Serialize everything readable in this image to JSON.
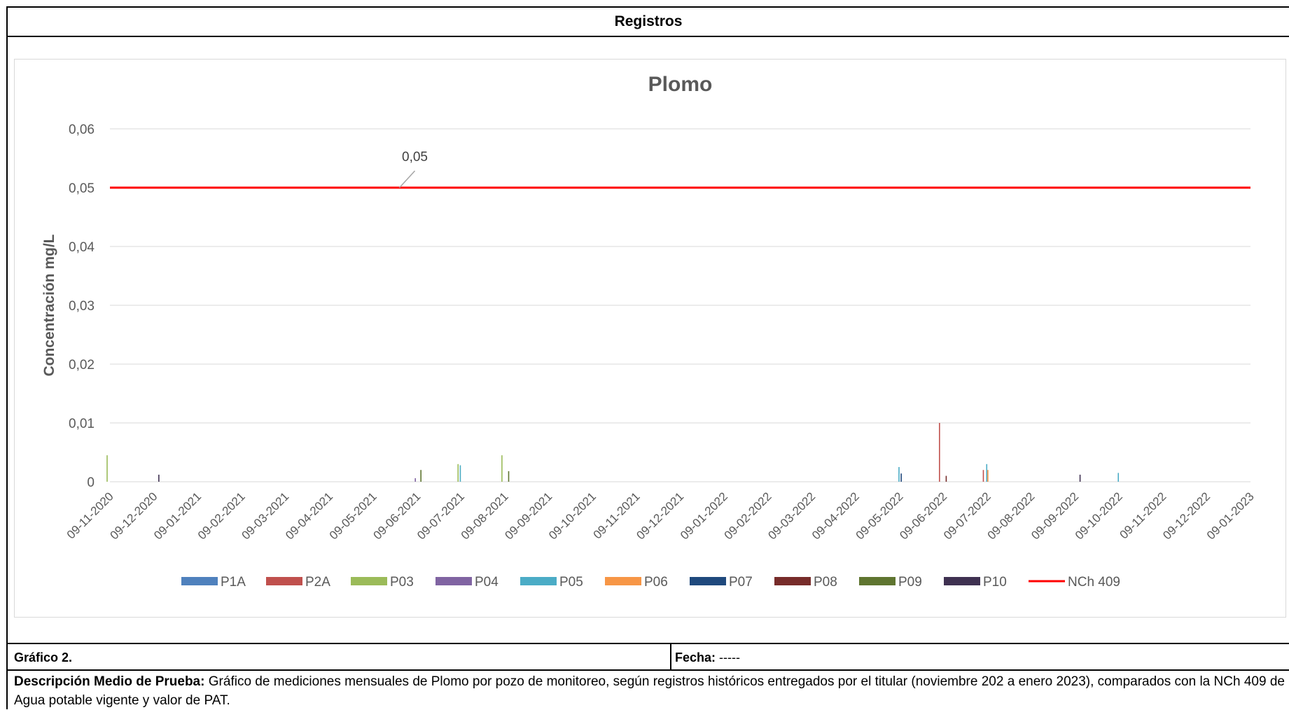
{
  "header": {
    "title": "Registros"
  },
  "chart_data": {
    "type": "bar",
    "title": "Plomo",
    "ylabel": "Concentración mg/L",
    "xlabel": "",
    "ylim": [
      0,
      0.06
    ],
    "yticks": [
      "0",
      "0,01",
      "0,02",
      "0,03",
      "0,04",
      "0,05",
      "0,06"
    ],
    "xticks": [
      "09-11-2020",
      "09-12-2020",
      "09-01-2021",
      "09-02-2021",
      "09-03-2021",
      "09-04-2021",
      "09-05-2021",
      "09-06-2021",
      "09-07-2021",
      "09-08-2021",
      "09-09-2021",
      "09-10-2021",
      "09-11-2021",
      "09-12-2021",
      "09-01-2022",
      "09-02-2022",
      "09-03-2022",
      "09-04-2022",
      "09-05-2022",
      "09-06-2022",
      "09-07-2022",
      "09-08-2022",
      "09-09-2022",
      "09-10-2022",
      "09-11-2022",
      "09-12-2022",
      "09-01-2023"
    ],
    "grid": true,
    "legend_position": "bottom",
    "series": [
      {
        "name": "P1A",
        "color": "#4f81bd",
        "points": []
      },
      {
        "name": "P2A",
        "color": "#c0504d",
        "points": [
          [
            "09-06-2022",
            0.01
          ],
          [
            "09-07-2022",
            0.002
          ]
        ]
      },
      {
        "name": "P03",
        "color": "#9bbb59",
        "points": [
          [
            "09-11-2020",
            0.0045
          ],
          [
            "09-08-2021",
            0.0045
          ],
          [
            "09-07-2021",
            0.003
          ]
        ]
      },
      {
        "name": "P04",
        "color": "#8064a2",
        "points": [
          [
            "09-06-2021",
            0.0006
          ]
        ]
      },
      {
        "name": "P05",
        "color": "#4bacc6",
        "points": [
          [
            "09-07-2021",
            0.0028
          ],
          [
            "09-05-2022",
            0.0025
          ],
          [
            "09-07-2022",
            0.003
          ],
          [
            "09-10-2022",
            0.0015
          ]
        ]
      },
      {
        "name": "P06",
        "color": "#f79646",
        "points": [
          [
            "09-07-2022",
            0.002
          ]
        ]
      },
      {
        "name": "P07",
        "color": "#1f497d",
        "points": [
          [
            "09-05-2022",
            0.0014
          ]
        ]
      },
      {
        "name": "P08",
        "color": "#772c2a",
        "points": [
          [
            "09-06-2022",
            0.001
          ]
        ]
      },
      {
        "name": "P09",
        "color": "#5f7530",
        "points": [
          [
            "09-08-2021",
            0.0018
          ],
          [
            "09-06-2021",
            0.002
          ]
        ]
      },
      {
        "name": "P10",
        "color": "#3f3151",
        "points": [
          [
            "09-12-2020",
            0.0012
          ],
          [
            "09-09-2022",
            0.0012
          ]
        ]
      },
      {
        "name": "NCh 409",
        "color": "#ff0000",
        "type": "line",
        "value": 0.05,
        "label": "0,05"
      }
    ]
  },
  "footer": {
    "grafico_label": "Gráfico 2.",
    "fecha_label": "Fecha:",
    "fecha_value": "-----",
    "desc_label": "Descripción Medio de Prueba:",
    "desc_text": "Gráfico de mediciones mensuales de Plomo por pozo de monitoreo, según registros históricos entregados por el titular (noviembre 202 a enero 2023), comparados con la NCh 409 de Agua potable vigente y valor de PAT."
  }
}
